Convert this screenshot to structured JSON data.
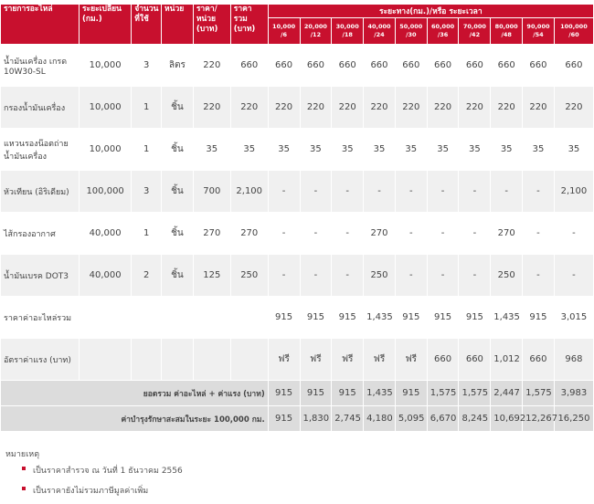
{
  "headers": {
    "part": "รายการอะไหล่",
    "interval": "ระยะเปลี่ยน (กม.)",
    "qty": "จำนวนที่ใช้",
    "unit": "หน่วย",
    "price_unit": "ราคา/หน่วย (บาท)",
    "price_total": "ราคารวม (บาท)",
    "distance": "ระยะทาง(กม.)/หรือ ระยะเวลา",
    "milestones": [
      "10,000 /6",
      "20,000 /12",
      "30,000 /18",
      "40,000 /24",
      "50,000 /30",
      "60,000 /36",
      "70,000 /42",
      "80,000 /48",
      "90,000 /54",
      "100,000 /60"
    ]
  },
  "rows": [
    {
      "name": "น้ำมันเครื่อง เกรด 10W30-SL",
      "interval": "10,000",
      "qty": "3",
      "unit": "ลิตร",
      "price": "220",
      "total": "660",
      "vals": [
        "660",
        "660",
        "660",
        "660",
        "660",
        "660",
        "660",
        "660",
        "660",
        "660"
      ]
    },
    {
      "name": "กรองน้ำมันเครื่อง",
      "interval": "10,000",
      "qty": "1",
      "unit": "ชิ้น",
      "price": "220",
      "total": "220",
      "vals": [
        "220",
        "220",
        "220",
        "220",
        "220",
        "220",
        "220",
        "220",
        "220",
        "220"
      ]
    },
    {
      "name": "แหวนรองน๊อตถ่ายน้ำมันเครื่อง",
      "interval": "10,000",
      "qty": "1",
      "unit": "ชิ้น",
      "price": "35",
      "total": "35",
      "vals": [
        "35",
        "35",
        "35",
        "35",
        "35",
        "35",
        "35",
        "35",
        "35",
        "35"
      ]
    },
    {
      "name": "หัวเทียน (อิริเดียม)",
      "interval": "100,000",
      "qty": "3",
      "unit": "ชิ้น",
      "price": "700",
      "total": "2,100",
      "vals": [
        "-",
        "-",
        "-",
        "-",
        "-",
        "-",
        "-",
        "-",
        "-",
        "2,100"
      ]
    },
    {
      "name": "ไส้กรองอากาศ",
      "interval": "40,000",
      "qty": "1",
      "unit": "ชิ้น",
      "price": "270",
      "total": "270",
      "vals": [
        "-",
        "-",
        "-",
        "270",
        "-",
        "-",
        "-",
        "270",
        "-",
        "-"
      ]
    },
    {
      "name": "น้ำมันเบรค DOT3",
      "interval": "40,000",
      "qty": "2",
      "unit": "ชิ้น",
      "price": "125",
      "total": "250",
      "vals": [
        "-",
        "-",
        "-",
        "250",
        "-",
        "-",
        "-",
        "250",
        "-",
        "-"
      ]
    }
  ],
  "parts_total": {
    "label": "ราคาค่าอะไหล่รวม",
    "vals": [
      "915",
      "915",
      "915",
      "1,435",
      "915",
      "915",
      "915",
      "1,435",
      "915",
      "3,015"
    ]
  },
  "labor": {
    "label": "อัตราค่าแรง (บาท)",
    "vals": [
      "ฟรี",
      "ฟรี",
      "ฟรี",
      "ฟรี",
      "ฟรี",
      "660",
      "660",
      "1,012",
      "660",
      "968"
    ]
  },
  "grand_total": {
    "label": "ยอดรวม ค่าอะไหล่ + ค่าแรง (บาท)",
    "vals": [
      "915",
      "915",
      "915",
      "1,435",
      "915",
      "1,575",
      "1,575",
      "2,447",
      "1,575",
      "3,983"
    ]
  },
  "cumulative": {
    "label": "ค่าบำรุงรักษาสะสมในระยะ 100,000 กม.",
    "vals": [
      "915",
      "1,830",
      "2,745",
      "4,180",
      "5,095",
      "6,670",
      "8,245",
      "10,692",
      "12,267",
      "16,250"
    ]
  },
  "notes": {
    "title": "หมายเหตุ",
    "items": [
      "เป็นราคาสำรวจ ณ วันที่ 1 ธันวาคม 2556",
      "เป็นราคายังไม่รวมภาษีมูลค่าเพิ่ม"
    ]
  },
  "colors": {
    "header": "#c8102e",
    "row_alt": "#f0f0f0",
    "summary": "#dcdcdc"
  }
}
